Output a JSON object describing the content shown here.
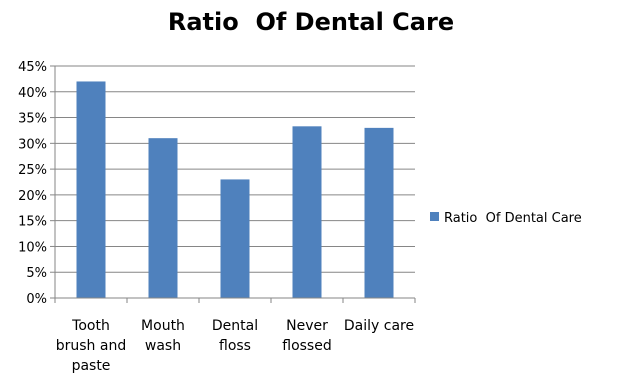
{
  "chart_data": {
    "type": "bar",
    "title": "Ratio  Of Dental Care",
    "xlabel": "",
    "ylabel": "",
    "categories": [
      [
        "Tooth",
        "brush and",
        "paste"
      ],
      [
        "Mouth",
        "wash"
      ],
      [
        "Dental",
        "floss"
      ],
      [
        "Never",
        "flossed"
      ],
      [
        "Daily care"
      ]
    ],
    "series": [
      {
        "name": "Ratio  Of Dental Care",
        "values": [
          42,
          31,
          23,
          33.3,
          33
        ],
        "color": "#4f81bd"
      }
    ],
    "ylim": [
      0,
      45
    ],
    "yticks": [
      0,
      5,
      10,
      15,
      20,
      25,
      30,
      35,
      40,
      45
    ],
    "ytick_labels": [
      "0%",
      "5%",
      "10%",
      "15%",
      "20%",
      "25%",
      "30%",
      "35%",
      "40%",
      "45%"
    ],
    "y_unit": "percent",
    "grid": true,
    "gridline_color": "#868686",
    "legend_position": "right"
  }
}
